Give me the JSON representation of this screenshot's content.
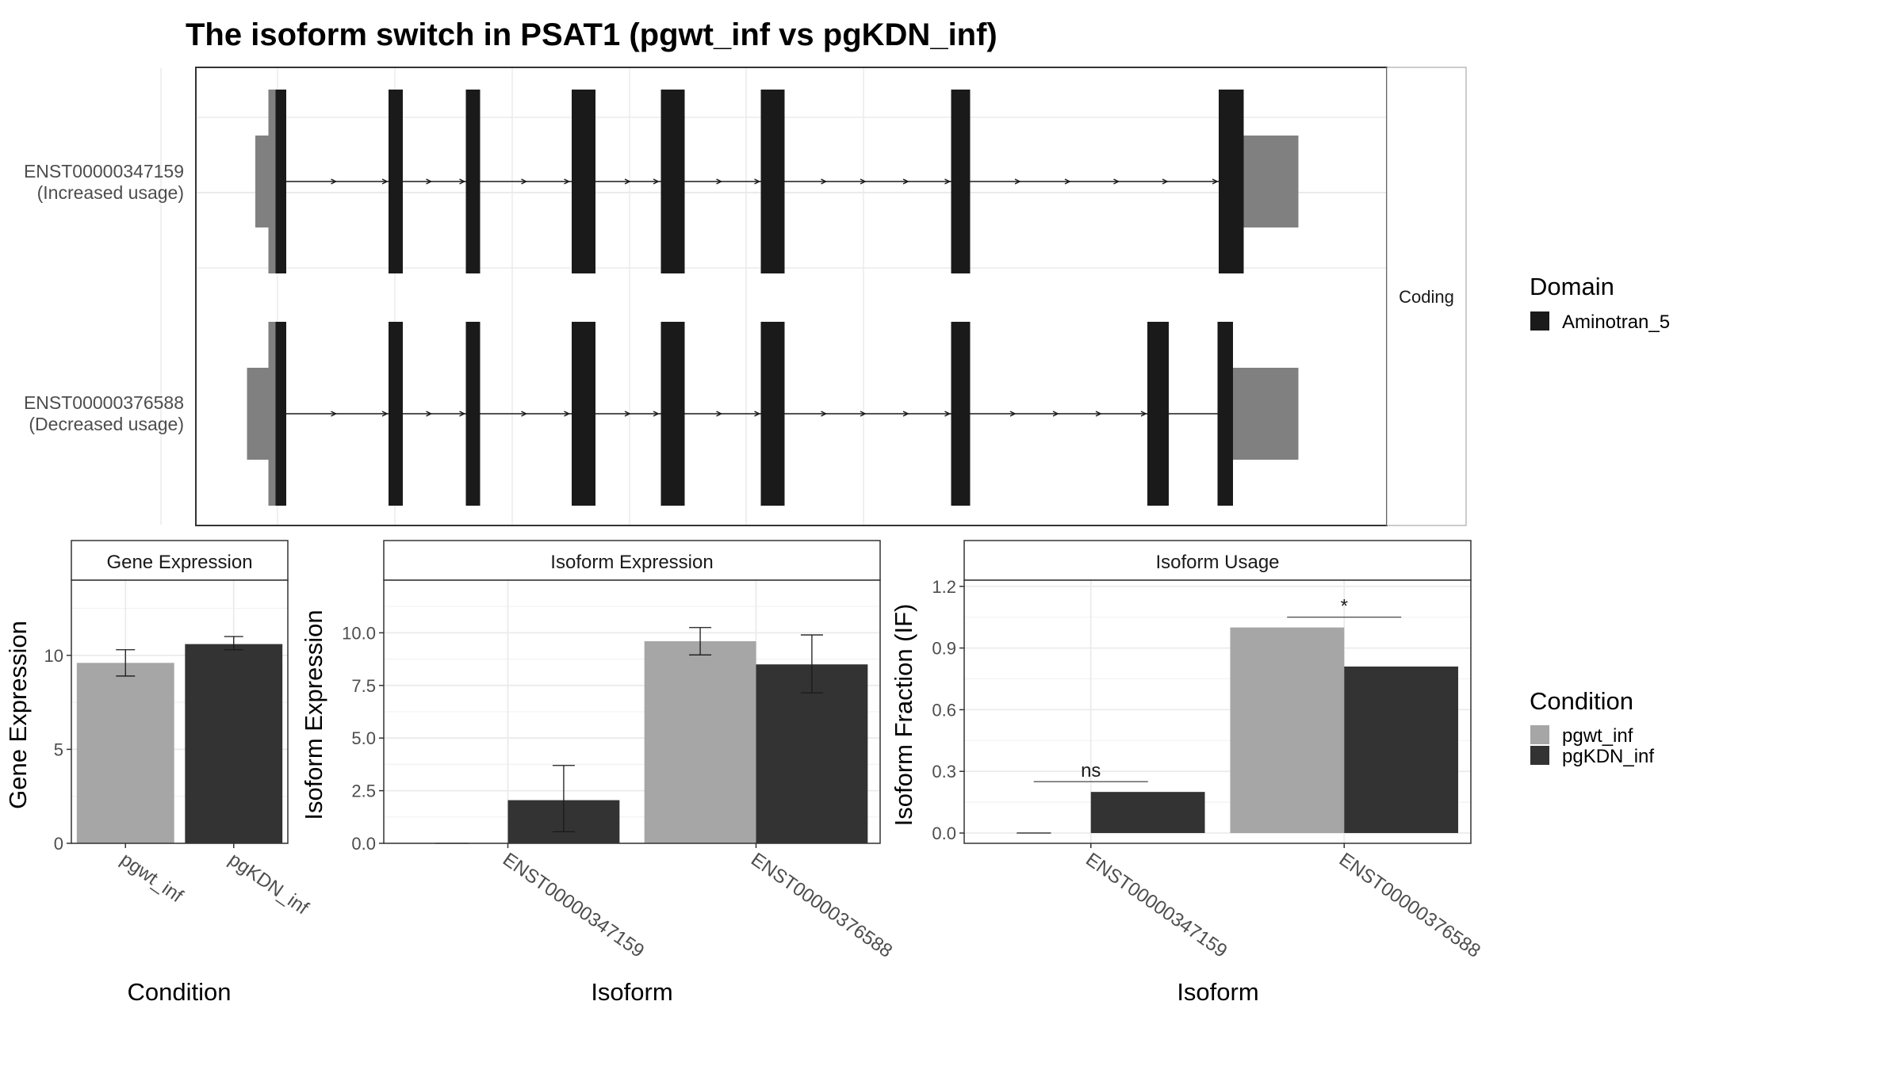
{
  "title": "The isoform switch in PSAT1 (pgwt_inf vs pgKDN_inf)",
  "chart_data": [
    {
      "type": "gene-structure",
      "strip_label": "Coding",
      "transcripts": [
        {
          "id": "ENST00000347159",
          "usage": "(Increased usage)",
          "utr_segments": [
            [
              210,
              228
            ],
            [
              1020,
              1087
            ]
          ],
          "exons": [
            [
              221,
              236
            ],
            [
              322,
              334
            ],
            [
              387,
              399
            ],
            [
              476,
              496
            ],
            [
              551,
              571
            ],
            [
              635,
              655
            ],
            [
              795,
              811
            ],
            [
              1020,
              1041
            ]
          ],
          "arrows": [
            277,
            320,
            357,
            385,
            437,
            473,
            524,
            548,
            601,
            633,
            689,
            722,
            758,
            793,
            852,
            894,
            935,
            976,
            1018
          ]
        },
        {
          "id": "ENST00000376588",
          "usage": "(Decreased usage)",
          "utr_segments": [
            [
              203,
              228
            ],
            [
              1032,
              1087
            ]
          ],
          "exons": [
            [
              221,
              236
            ],
            [
              322,
              334
            ],
            [
              387,
              399
            ],
            [
              476,
              496
            ],
            [
              551,
              571
            ],
            [
              635,
              655
            ],
            [
              795,
              811
            ],
            [
              960,
              978
            ],
            [
              1019,
              1032
            ]
          ],
          "arrows": [
            277,
            320,
            357,
            385,
            437,
            473,
            524,
            548,
            601,
            633,
            689,
            722,
            758,
            793,
            848,
            884,
            920,
            958
          ]
        }
      ],
      "legend": {
        "title": "Domain",
        "items": [
          {
            "label": "Aminotran_5",
            "color": "#1a1a1a"
          }
        ]
      }
    },
    {
      "type": "bar",
      "panel_title": "Gene Expression",
      "xlabel": "Condition",
      "ylabel": "Gene Expression",
      "ylim": [
        0,
        14
      ],
      "yticks": [
        0,
        5,
        10
      ],
      "ytick_labels": [
        "0",
        "5",
        "10"
      ],
      "categories": [
        "pgwt_inf",
        "pgKDN_inf"
      ],
      "values": [
        9.6,
        10.6
      ],
      "error_low": [
        8.9,
        10.3
      ],
      "error_high": [
        10.3,
        11.0
      ]
    },
    {
      "type": "bar",
      "panel_title": "Isoform Expression",
      "xlabel": "Isoform",
      "ylabel": "Isoform Expression",
      "ylim": [
        0,
        12.5
      ],
      "yticks": [
        0,
        2.5,
        5,
        7.5,
        10
      ],
      "ytick_labels": [
        "0.0",
        "2.5",
        "5.0",
        "7.5",
        "10.0"
      ],
      "categories": [
        "ENST00000347159",
        "ENST00000376588"
      ],
      "series": [
        {
          "name": "pgwt_inf",
          "values": [
            0.0,
            9.6
          ],
          "error_low": [
            0.0,
            8.95
          ],
          "error_high": [
            0.0,
            10.25
          ]
        },
        {
          "name": "pgKDN_inf",
          "values": [
            2.05,
            8.5
          ],
          "error_low": [
            0.55,
            7.15
          ],
          "error_high": [
            3.7,
            9.9
          ]
        }
      ]
    },
    {
      "type": "bar",
      "panel_title": "Isoform Usage",
      "xlabel": "Isoform",
      "ylabel": "Isoform Fraction (IF)",
      "ylim": [
        -0.05,
        1.23
      ],
      "yticks": [
        0,
        0.3,
        0.6,
        0.9,
        1.2
      ],
      "ytick_labels": [
        "0.0",
        "0.3",
        "0.6",
        "0.9",
        "1.2"
      ],
      "categories": [
        "ENST00000347159",
        "ENST00000376588"
      ],
      "series": [
        {
          "name": "pgwt_inf",
          "values": [
            0.0,
            1.0
          ]
        },
        {
          "name": "pgKDN_inf",
          "values": [
            0.2,
            0.81
          ]
        }
      ],
      "significance": [
        {
          "label": "ns",
          "y": 0.25
        },
        {
          "label": "*",
          "y": 1.05
        }
      ]
    }
  ],
  "condition_legend": {
    "title": "Condition",
    "items": [
      {
        "label": "pgwt_inf",
        "color": "#a6a6a6"
      },
      {
        "label": "pgKDN_inf",
        "color": "#333333"
      }
    ]
  }
}
